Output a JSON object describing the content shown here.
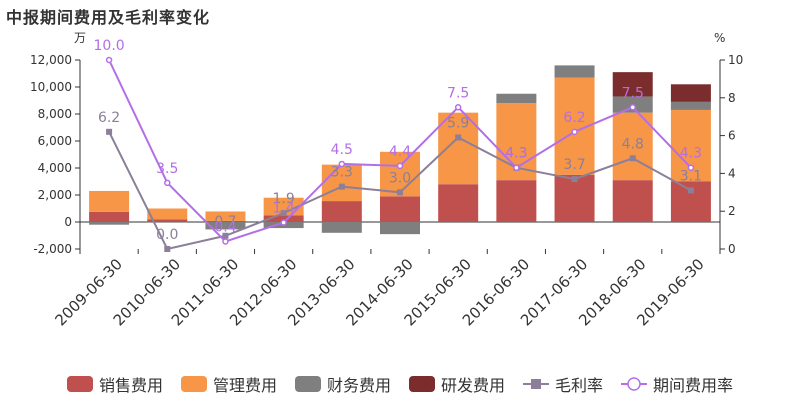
{
  "title": "中报期间费用及毛利率变化",
  "chart_data": {
    "type": "bar",
    "stacked": true,
    "categories": [
      "2009-06-30",
      "2010-06-30",
      "2011-06-30",
      "2012-06-30",
      "2013-06-30",
      "2014-06-30",
      "2015-06-30",
      "2016-06-30",
      "2017-06-30",
      "2018-06-30",
      "2019-06-30"
    ],
    "series": [
      {
        "name": "销售费用",
        "color": "#c0504d",
        "axis": "left",
        "values": [
          750,
          200,
          80,
          500,
          1550,
          1900,
          2800,
          3100,
          3500,
          3100,
          3000
        ]
      },
      {
        "name": "管理费用",
        "color": "#f79646",
        "axis": "left",
        "values": [
          1550,
          800,
          700,
          1300,
          2700,
          3300,
          5300,
          5700,
          7200,
          5000,
          5300
        ]
      },
      {
        "name": "财务费用",
        "color": "#7f7f7f",
        "axis": "left",
        "values": [
          -200,
          -50,
          -550,
          -450,
          -800,
          -900,
          0,
          700,
          900,
          1200,
          600
        ]
      },
      {
        "name": "研发费用",
        "color": "#7b2c2c",
        "axis": "left",
        "values": [
          0,
          0,
          0,
          0,
          0,
          0,
          0,
          0,
          0,
          1800,
          1300
        ]
      },
      {
        "name": "毛利率",
        "type": "line",
        "color": "#8c7f99",
        "marker": "square",
        "axis": "right",
        "values": [
          6.2,
          0.0,
          0.7,
          1.9,
          3.3,
          3.0,
          5.9,
          4.3,
          3.7,
          4.8,
          3.1
        ]
      },
      {
        "name": "期间费用率",
        "type": "line",
        "color": "#b36ee8",
        "marker": "circle",
        "axis": "right",
        "values": [
          10.0,
          3.5,
          0.4,
          1.4,
          4.5,
          4.4,
          7.5,
          4.3,
          6.2,
          7.5,
          4.3
        ]
      }
    ],
    "ylabel_left": "万",
    "ylabel_right": "%",
    "ylim_left": [
      -2000,
      12000
    ],
    "yticks_left": [
      "-2,000",
      "0",
      "2,000",
      "4,000",
      "6,000",
      "8,000",
      "10,000",
      "12,000"
    ],
    "ylim_right": [
      0,
      10
    ],
    "yticks_right": [
      "0",
      "2",
      "4",
      "6",
      "8",
      "10"
    ],
    "legend_position": "bottom"
  }
}
